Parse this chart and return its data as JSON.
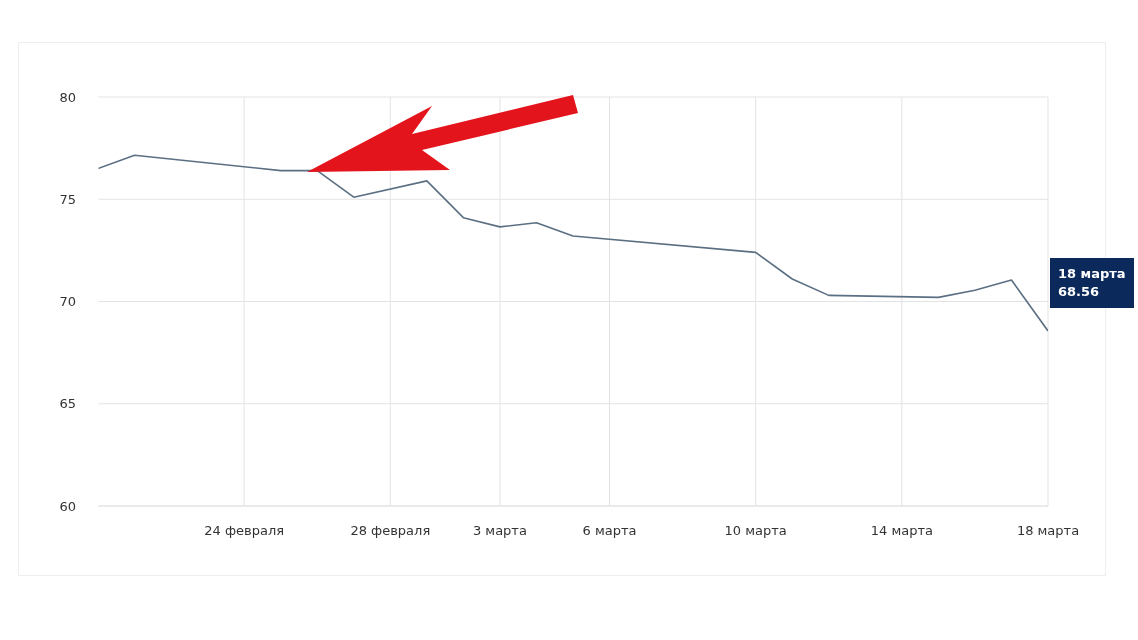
{
  "chart_data": {
    "type": "line",
    "x": [
      "--02-20",
      "--02-21",
      "--02-25",
      "--02-26",
      "--02-27",
      "--03-01",
      "--03-02",
      "--03-03",
      "--03-04",
      "--03-05",
      "--03-10",
      "--03-11",
      "--03-12",
      "--03-15",
      "--03-16",
      "--03-17",
      "--03-18"
    ],
    "series": [
      {
        "color": "#5b6f83",
        "values": [
          76.5,
          77.15,
          76.4,
          76.4,
          75.1,
          75.9,
          74.1,
          73.65,
          73.85,
          73.2,
          72.4,
          71.1,
          70.3,
          70.2,
          70.55,
          71.05,
          68.56
        ]
      }
    ],
    "xlim": [
      "--02-20",
      "--03-18"
    ],
    "xticks": [
      {
        "value": "--02-24",
        "label": "24 февраля"
      },
      {
        "value": "--02-28",
        "label": "28 февраля"
      },
      {
        "value": "--03-03",
        "label": "3 марта"
      },
      {
        "value": "--03-06",
        "label": "6 марта"
      },
      {
        "value": "--03-10",
        "label": "10 марта"
      },
      {
        "value": "--03-14",
        "label": "14 марта"
      },
      {
        "value": "--03-18",
        "label": "18 марта"
      }
    ],
    "ylim": [
      60,
      80
    ],
    "yticks": [
      60,
      65,
      70,
      75,
      80
    ],
    "grid": true,
    "marker": "none",
    "line_style": "solid",
    "annotations": [
      "18 марта\n68.56"
    ]
  }
}
